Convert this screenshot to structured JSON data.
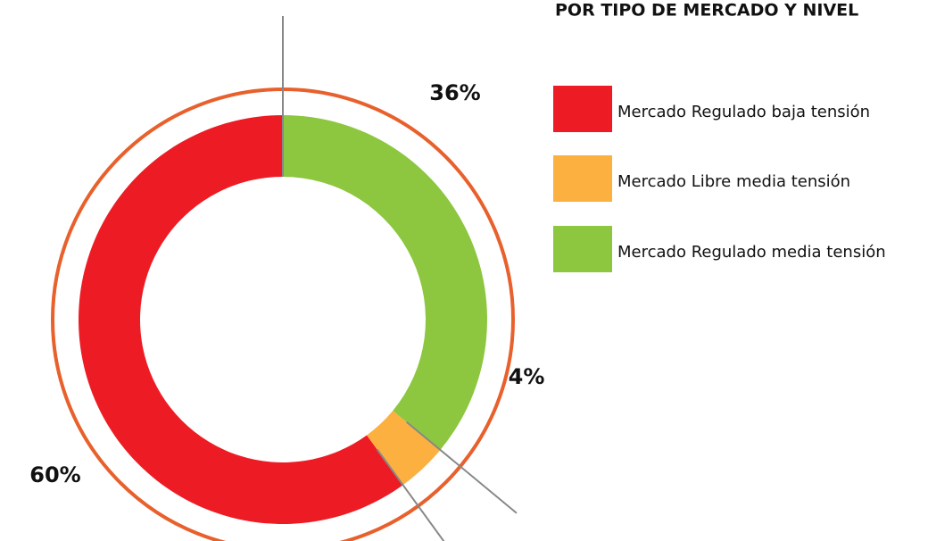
{
  "chart_data": {
    "type": "donut",
    "title": "POR TIPO DE MERCADO Y NIVEL",
    "categories": [
      "Mercado Regulado baja tensión",
      "Mercado Libre media tensión",
      "Mercado Regulado media tensión"
    ],
    "values": [
      60,
      4,
      36
    ],
    "value_labels": [
      "60%",
      "4%",
      "36%"
    ],
    "colors": [
      "#ed1c24",
      "#fbb040",
      "#8dc63f"
    ]
  }
}
